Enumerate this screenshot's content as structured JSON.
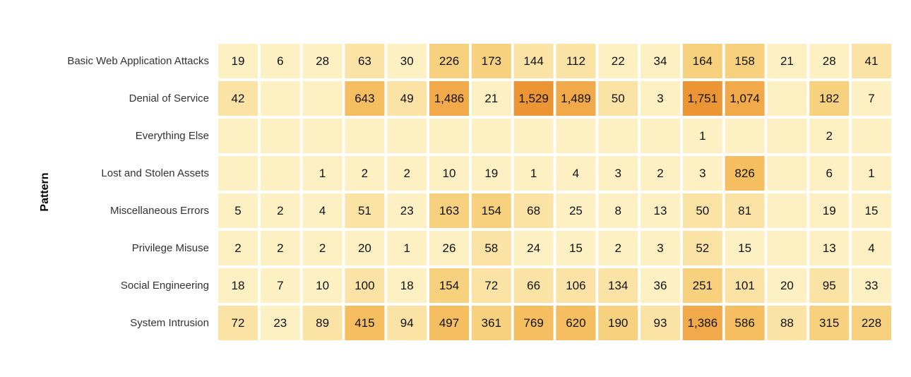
{
  "chart_data": {
    "type": "heatmap",
    "ylabel": "Pattern",
    "rows": [
      "Basic Web Application Attacks",
      "Denial of Service",
      "Everything Else",
      "Lost and Stolen Assets",
      "Miscellaneous Errors",
      "Privilege Misuse",
      "Social Engineering",
      "System Intrusion"
    ],
    "num_columns": 16,
    "values": [
      [
        19,
        6,
        28,
        63,
        30,
        226,
        173,
        144,
        112,
        22,
        34,
        164,
        158,
        21,
        28,
        41
      ],
      [
        42,
        null,
        null,
        643,
        49,
        1486,
        21,
        1529,
        1489,
        50,
        3,
        1751,
        1074,
        null,
        182,
        7
      ],
      [
        null,
        null,
        null,
        null,
        null,
        null,
        null,
        null,
        null,
        null,
        null,
        1,
        null,
        null,
        2,
        null
      ],
      [
        null,
        null,
        1,
        2,
        2,
        10,
        19,
        1,
        4,
        3,
        2,
        3,
        826,
        null,
        6,
        1
      ],
      [
        5,
        2,
        4,
        51,
        23,
        163,
        154,
        68,
        25,
        8,
        13,
        50,
        81,
        null,
        19,
        15
      ],
      [
        2,
        2,
        2,
        20,
        1,
        26,
        58,
        24,
        15,
        2,
        3,
        52,
        15,
        null,
        13,
        4
      ],
      [
        18,
        7,
        10,
        100,
        18,
        154,
        72,
        66,
        106,
        134,
        36,
        251,
        101,
        20,
        95,
        33
      ],
      [
        72,
        23,
        89,
        415,
        94,
        497,
        361,
        769,
        620,
        190,
        93,
        1386,
        586,
        88,
        315,
        228
      ]
    ],
    "color_scale": [
      "#fdf1c4",
      "#fbe3a6",
      "#f8d17e",
      "#f5be61",
      "#f2a94a",
      "#eb9534"
    ]
  }
}
